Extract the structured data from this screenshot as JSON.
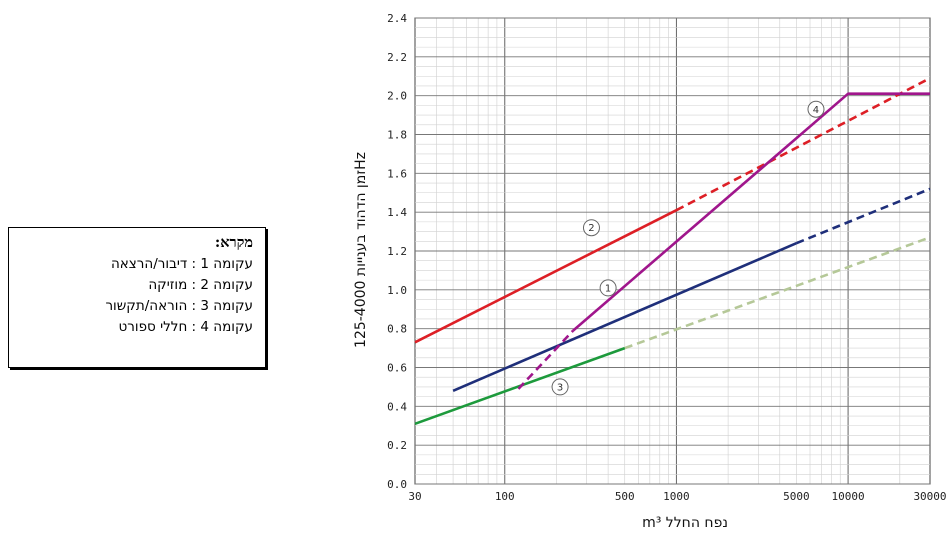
{
  "legend": {
    "title": "מקרא:",
    "items": [
      "עקומה 1 : דיבור/הרצאה",
      "עקומה 2 : מוזיקה",
      "עקומה 3 : הוראה/תקשור",
      "עקומה 4 : חללי ספורט"
    ]
  },
  "chart_data": {
    "type": "line",
    "xscale": "log",
    "xlim": [
      30,
      30000
    ],
    "ylim": [
      0,
      2.4
    ],
    "xlabel": "m³ נפח החלל",
    "ylabel": "זמן הדהוד בענייות 125-4000Hz",
    "xticks": [
      {
        "value": 30,
        "label": "30"
      },
      {
        "value": 100,
        "label": "100"
      },
      {
        "value": 500,
        "label": "500"
      },
      {
        "value": 1000,
        "label": "1000"
      },
      {
        "value": 5000,
        "label": "5000"
      },
      {
        "value": 10000,
        "label": "10000"
      },
      {
        "value": 30000,
        "label": "30000"
      }
    ],
    "yticks": [
      0,
      0.2,
      0.4,
      0.6,
      0.8,
      1.0,
      1.2,
      1.4,
      1.6,
      1.8,
      2.0,
      2.2,
      2.4
    ],
    "ytick_labels": [
      "0.0",
      "0.2",
      "0.4",
      "0.6",
      "0.8",
      "1.0",
      "1.2",
      "1.4",
      "1.6",
      "1.8",
      "2.0",
      "2.2",
      "2.4"
    ],
    "grid": true,
    "series": [
      {
        "name": "1",
        "color": "#1f2f7a",
        "solid": [
          [
            50,
            0.48
          ],
          [
            5000,
            1.24
          ]
        ],
        "dashed": [
          [
            5000,
            1.24
          ],
          [
            30000,
            1.52
          ]
        ],
        "marker": {
          "x": 400,
          "y": 1.01
        }
      },
      {
        "name": "2",
        "color": "#dd1f26",
        "solid": [
          [
            30,
            0.73
          ],
          [
            1000,
            1.41
          ]
        ],
        "dashed": [
          [
            1000,
            1.41
          ],
          [
            30000,
            2.09
          ]
        ],
        "marker": {
          "x": 320,
          "y": 1.32
        }
      },
      {
        "name": "3",
        "color": "#1d9a3c",
        "solid": [
          [
            30,
            0.31
          ],
          [
            500,
            0.7
          ]
        ],
        "dashed": [
          [
            500,
            0.7
          ],
          [
            30000,
            1.27
          ]
        ],
        "dashed_color": "#b5c898",
        "marker": {
          "x": 210,
          "y": 0.5
        }
      },
      {
        "name": "4",
        "color": "#a0168c",
        "dashed": [
          [
            120,
            0.49
          ],
          [
            250,
            0.79
          ]
        ],
        "solid": [
          [
            250,
            0.79
          ],
          [
            10000,
            2.01
          ],
          [
            30000,
            2.01
          ]
        ],
        "marker": {
          "x": 6500,
          "y": 1.93
        }
      }
    ]
  }
}
